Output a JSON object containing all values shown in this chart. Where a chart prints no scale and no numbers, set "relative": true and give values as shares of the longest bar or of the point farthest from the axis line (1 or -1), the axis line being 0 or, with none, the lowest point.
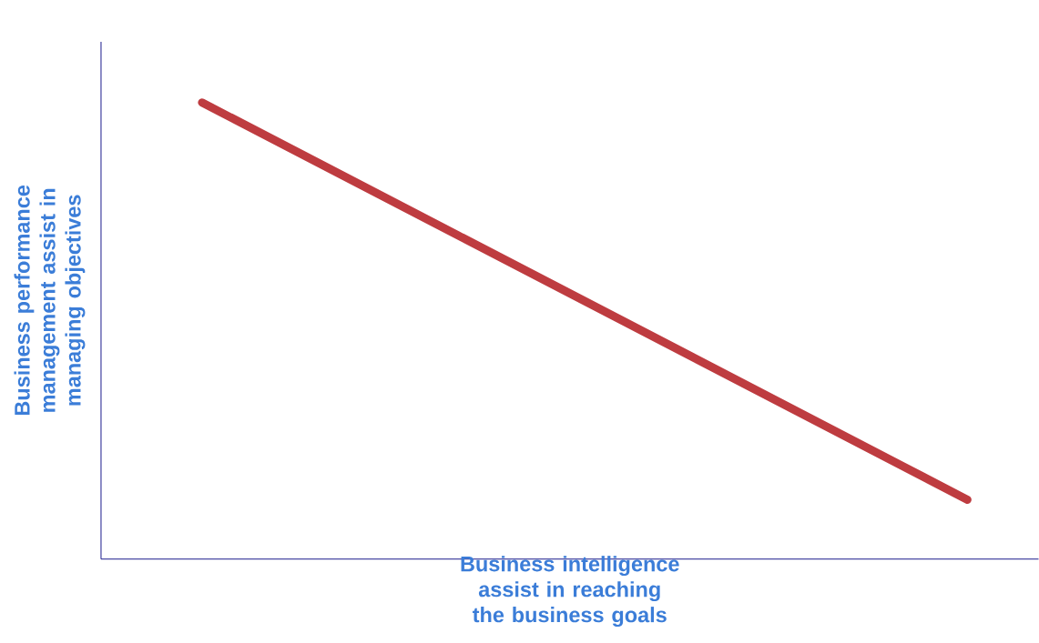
{
  "chart_data": {
    "type": "line",
    "relative": true,
    "xlabel": "Business intelligence assist in reaching the business goals",
    "ylabel": "Business performance management assist in managing objectives",
    "categories": [
      null,
      null
    ],
    "series": [
      {
        "color": "#be3c40",
        "values": [
          1,
          0.13
        ]
      }
    ]
  }
}
